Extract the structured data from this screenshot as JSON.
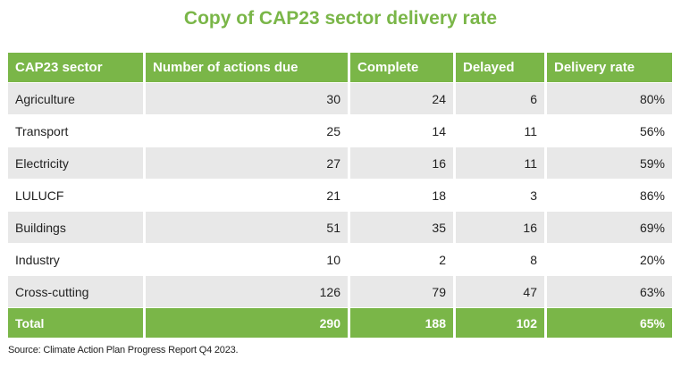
{
  "title": "Copy of CAP23 sector delivery rate",
  "table": {
    "headers": [
      "CAP23 sector",
      "Number of actions due",
      "Complete",
      "Delayed",
      "Delivery rate"
    ],
    "rows": [
      [
        "Agriculture",
        "30",
        "24",
        "6",
        "80%"
      ],
      [
        "Transport",
        "25",
        "14",
        "11",
        "56%"
      ],
      [
        "Electricity",
        "27",
        "16",
        "11",
        "59%"
      ],
      [
        "LULUCF",
        "21",
        "18",
        "3",
        "86%"
      ],
      [
        "Buildings",
        "51",
        "35",
        "16",
        "69%"
      ],
      [
        "Industry",
        "10",
        "2",
        "8",
        "20%"
      ],
      [
        "Cross-cutting",
        "126",
        "79",
        "47",
        "63%"
      ]
    ],
    "total": [
      "Total",
      "290",
      "188",
      "102",
      "65%"
    ]
  },
  "source": "Source: Climate Action Plan Progress Report Q4 2023.",
  "colors": {
    "accent": "#7ab648",
    "row_shade": "#e8e8e8"
  }
}
